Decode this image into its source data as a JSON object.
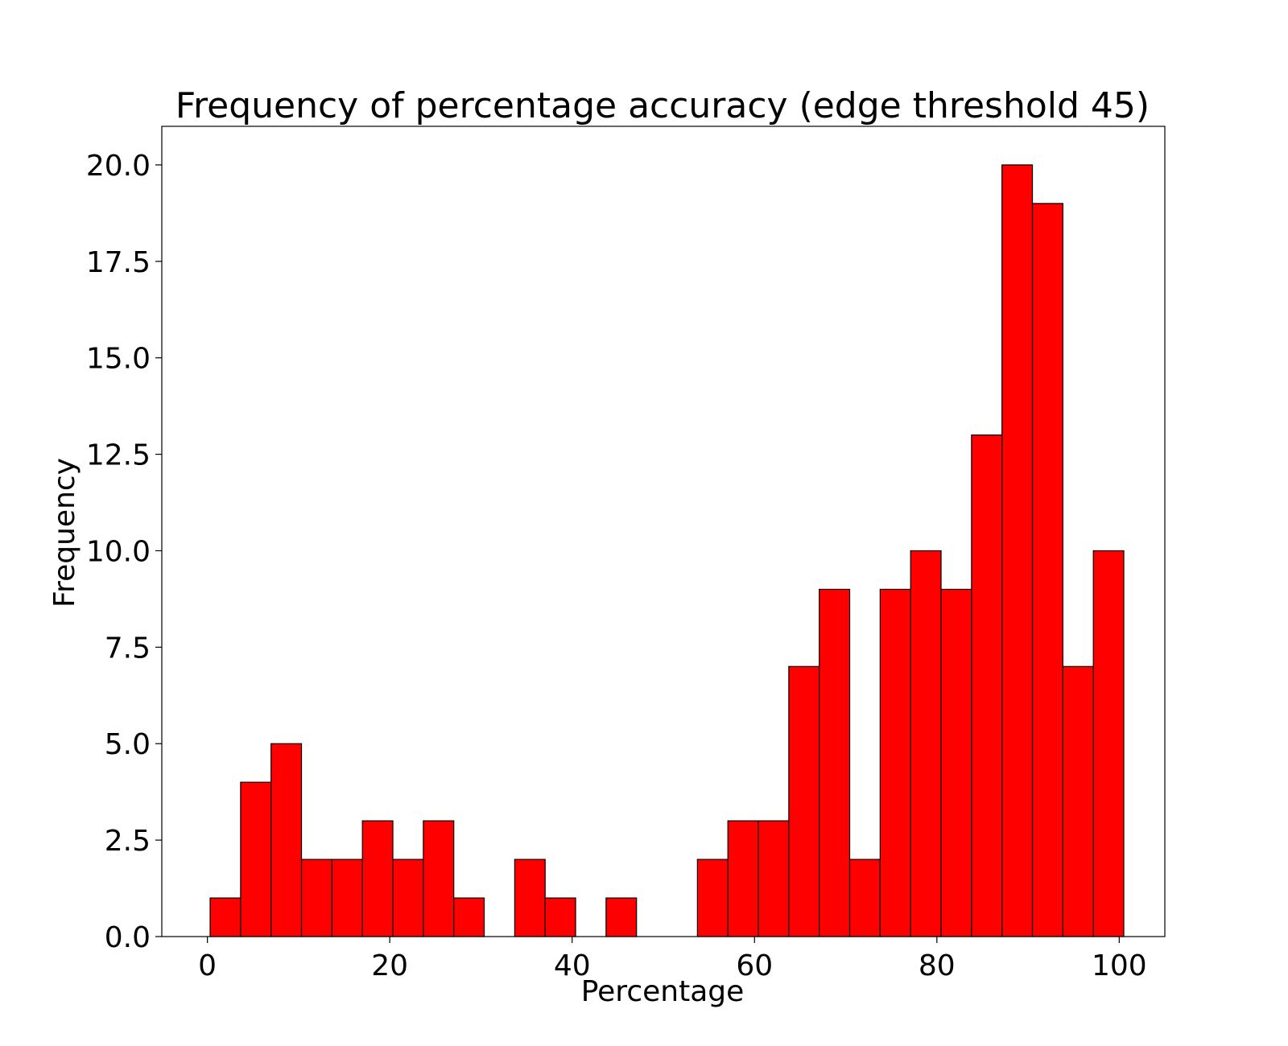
{
  "chart_data": {
    "type": "bar",
    "title": "Frequency of percentage accuracy (edge threshold 45)",
    "xlabel": "Percentage",
    "ylabel": "Frequency",
    "bar_color": "#ff0000",
    "edge_color": "#000000",
    "grid": false,
    "xlim": [
      -5,
      105
    ],
    "ylim": [
      0,
      21
    ],
    "bin_edges": [
      0.3,
      3.64,
      6.98,
      10.32,
      13.66,
      17.0,
      20.34,
      23.68,
      27.02,
      30.36,
      33.7,
      37.04,
      40.38,
      43.72,
      47.06,
      50.4,
      53.74,
      57.08,
      60.42,
      63.76,
      67.1,
      70.44,
      73.78,
      77.12,
      80.46,
      83.8,
      87.14,
      90.48,
      93.82,
      97.16,
      100.5
    ],
    "values": [
      1,
      4,
      5,
      2,
      2,
      3,
      2,
      3,
      1,
      0,
      2,
      1,
      0,
      1,
      0,
      0,
      2,
      3,
      3,
      7,
      9,
      2,
      9,
      10,
      9,
      13,
      20,
      19,
      7,
      10
    ],
    "x_ticks": [
      {
        "value": 0,
        "label": "0"
      },
      {
        "value": 20,
        "label": "20"
      },
      {
        "value": 40,
        "label": "40"
      },
      {
        "value": 60,
        "label": "60"
      },
      {
        "value": 80,
        "label": "80"
      },
      {
        "value": 100,
        "label": "100"
      }
    ],
    "y_ticks": [
      {
        "value": 0,
        "label": "0.0"
      },
      {
        "value": 2.5,
        "label": "2.5"
      },
      {
        "value": 5,
        "label": "5.0"
      },
      {
        "value": 7.5,
        "label": "7.5"
      },
      {
        "value": 10,
        "label": "10.0"
      },
      {
        "value": 12.5,
        "label": "12.5"
      },
      {
        "value": 15,
        "label": "15.0"
      },
      {
        "value": 17.5,
        "label": "17.5"
      },
      {
        "value": 20,
        "label": "20.0"
      }
    ]
  }
}
